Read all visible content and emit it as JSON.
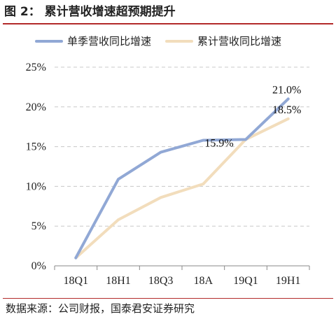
{
  "figure": {
    "title": "图 2：  累计营收增速超预期提升",
    "source": "数据来源：公司财报，国泰君安证券研究"
  },
  "chart_data": {
    "type": "line",
    "categories": [
      "18Q1",
      "18H1",
      "18Q3",
      "18A",
      "19Q1",
      "19H1"
    ],
    "series": [
      {
        "name": "单季营收同比增速",
        "values": [
          1.0,
          10.9,
          14.3,
          15.8,
          15.9,
          21.0
        ],
        "color": "#91a8d5"
      },
      {
        "name": "累计营收同比增速",
        "values": [
          1.0,
          5.8,
          8.6,
          10.3,
          15.9,
          18.5
        ],
        "color": "#f2ddbc"
      }
    ],
    "data_labels": [
      {
        "series": 0,
        "index": 5,
        "text": "21.0%"
      },
      {
        "series": 1,
        "index": 5,
        "text": "18.5%"
      },
      {
        "series": 0,
        "index": 4,
        "text": "15.9%"
      }
    ],
    "y_ticks": [
      "0%",
      "5%",
      "10%",
      "15%",
      "20%",
      "25%"
    ],
    "ylim": [
      0,
      25
    ],
    "grid": true,
    "legend_position": "top"
  }
}
